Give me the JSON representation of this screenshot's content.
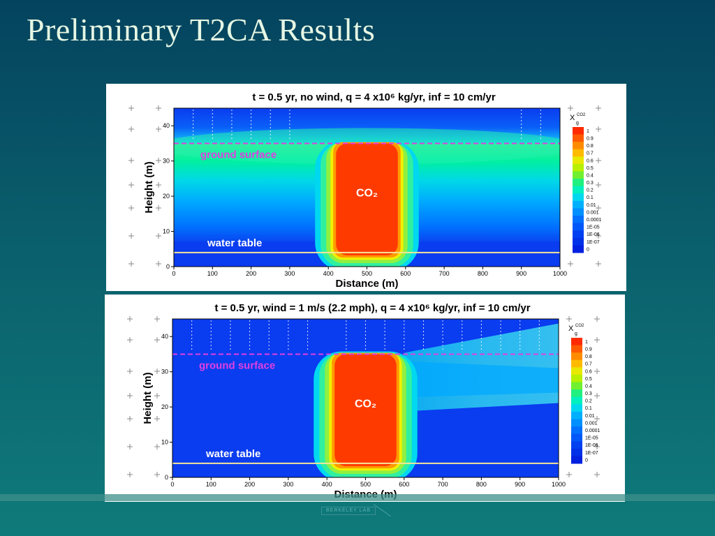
{
  "slide": {
    "title": "Preliminary T2CA Results",
    "footer_logo": "BERKELEY LAB"
  },
  "colors": {
    "background": "#04435e",
    "title": "#e6f7e4",
    "co2_plume": "#ff3a00",
    "ground_surface_line": "#e040e0",
    "water_table_line": "#f5e69a",
    "low_concentration": "#0a3cf0"
  },
  "chart_data": [
    {
      "type": "heatmap",
      "title": "t = 0.5 yr, no wind, q = 4  x10⁶ kg/yr, inf = 10 cm/yr",
      "xlabel": "Distance (m)",
      "ylabel": "Height (m)",
      "xlim": [
        0,
        1000
      ],
      "ylim": [
        0,
        45
      ],
      "xticks": [
        0,
        100,
        200,
        300,
        400,
        500,
        600,
        700,
        800,
        900,
        1000
      ],
      "yticks": [
        0,
        10,
        20,
        30,
        40
      ],
      "ground_surface": {
        "label": "ground surface",
        "height": 35
      },
      "water_table": {
        "label": "water table",
        "height": 4
      },
      "plume": {
        "label": "CO₂",
        "x_range": [
          420,
          580
        ],
        "height_range": [
          4,
          35
        ]
      },
      "wind": false,
      "legend": {
        "symbol": "X",
        "subscript": "g",
        "superscript": "CO2",
        "levels": [
          "1",
          "0.9",
          "0.8",
          "0.7",
          "0.6",
          "0.5",
          "0.4",
          "0.3",
          "0.2",
          "0.1",
          "0.01",
          "0.001",
          "0.0001",
          "1E-05",
          "1E-06",
          "1E-07",
          "0"
        ]
      }
    },
    {
      "type": "heatmap",
      "title": "t = 0.5 yr, wind = 1 m/s (2.2 mph), q = 4  x10⁶ kg/yr, inf = 10 cm/yr",
      "xlabel": "Distance (m)",
      "ylabel": "Height (m)",
      "xlim": [
        0,
        1000
      ],
      "ylim": [
        0,
        45
      ],
      "xticks": [
        0,
        100,
        200,
        300,
        400,
        500,
        600,
        700,
        800,
        900,
        1000
      ],
      "yticks": [
        0,
        10,
        20,
        30,
        40
      ],
      "ground_surface": {
        "label": "ground surface",
        "height": 35
      },
      "water_table": {
        "label": "water table",
        "height": 4
      },
      "plume": {
        "label": "CO₂",
        "x_range": [
          420,
          580
        ],
        "height_range": [
          4,
          35
        ]
      },
      "wind": true,
      "legend": {
        "symbol": "X",
        "subscript": "g",
        "superscript": "CO2",
        "levels": [
          "1",
          "0.9",
          "0.8",
          "0.7",
          "0.6",
          "0.5",
          "0.4",
          "0.3",
          "0.2",
          "0.1",
          "0.01",
          "0.001",
          "0.0001",
          "1E-05",
          "1E-06",
          "1E-07",
          "0"
        ]
      }
    }
  ]
}
